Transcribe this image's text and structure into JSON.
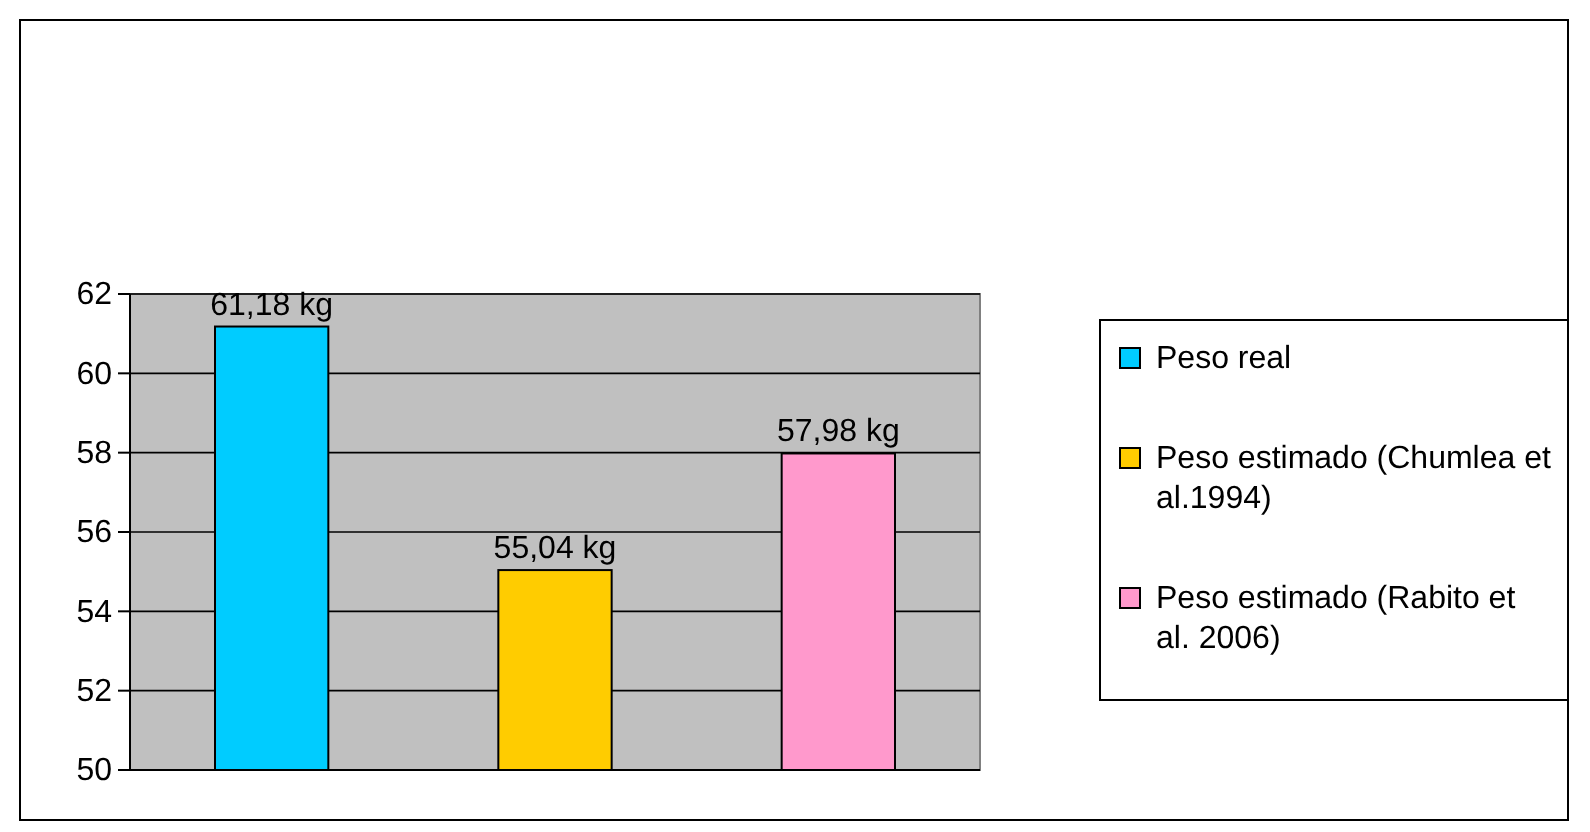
{
  "chart_data": {
    "type": "bar",
    "categories": [
      null
    ],
    "series": [
      {
        "name": "Peso real",
        "color": "#00ccff",
        "values": [
          61.18
        ],
        "value_labels": [
          "61,18 kg"
        ]
      },
      {
        "name": "Peso estimado (Chumlea et al.1994)",
        "color": "#ffcc00",
        "values": [
          55.04
        ],
        "value_labels": [
          "55,04 kg"
        ]
      },
      {
        "name": "Peso estimado (Rabito et al. 2006)",
        "color": "#ff99cc",
        "values": [
          57.98
        ],
        "value_labels": [
          "57,98 kg"
        ]
      }
    ],
    "ylim": [
      50,
      62
    ],
    "yticks": [
      50,
      52,
      54,
      56,
      58,
      60,
      62
    ],
    "grid": "y",
    "legend": "right"
  }
}
